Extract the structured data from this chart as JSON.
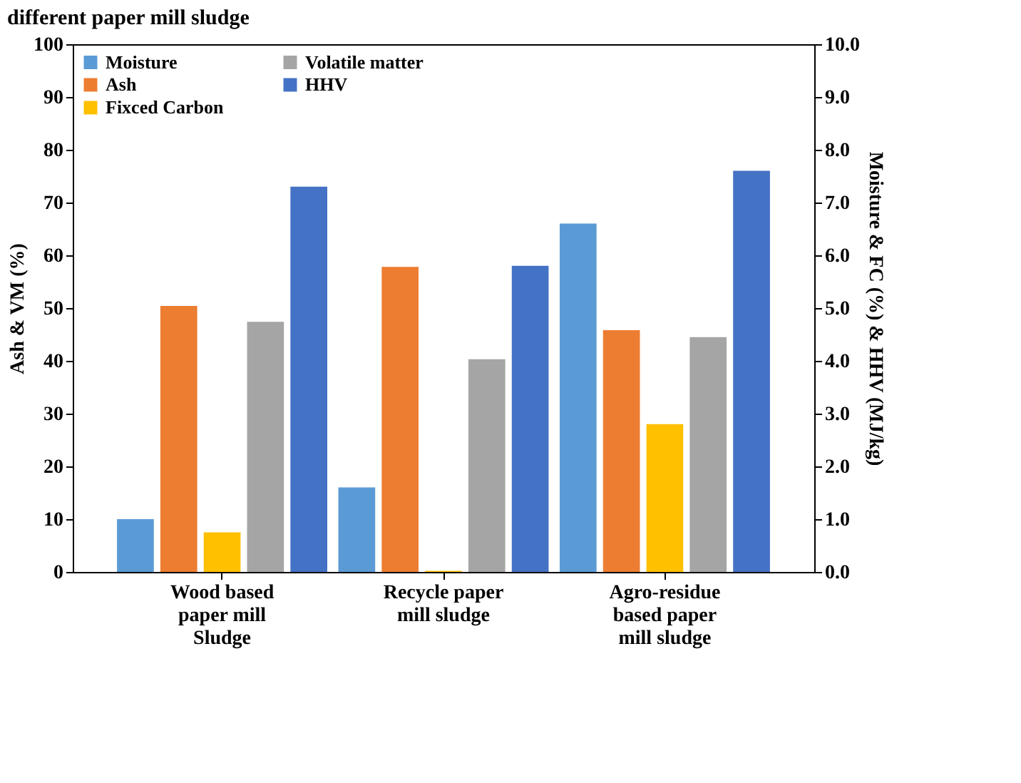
{
  "chart_data": {
    "type": "bar",
    "title": "different paper mill sludge",
    "categories": [
      "Wood based paper mill Sludge",
      "Recycle paper mill sludge",
      "Agro-residue based paper mill sludge"
    ],
    "series": [
      {
        "name": "Moisture",
        "color": "#5b9bd5",
        "axis": "y2",
        "values": [
          1.0,
          1.6,
          6.6
        ]
      },
      {
        "name": "Ash",
        "color": "#ed7d31",
        "values": [
          50.4,
          57.8,
          45.8
        ]
      },
      {
        "name": "Fixced Carbon",
        "color": "#ffc000",
        "axis": "y2",
        "values": [
          0.75,
          0.02,
          2.8
        ]
      },
      {
        "name": "Volatile matter",
        "color": "#a5a5a5",
        "values": [
          47.4,
          40.3,
          44.5
        ]
      },
      {
        "name": "HHV",
        "color": "#4472c4",
        "axis": "y2",
        "values": [
          7.3,
          5.8,
          7.6
        ]
      }
    ],
    "ylabel": "Ash & VM (%)",
    "y2label": "Moisture & FC (%) & HHV (MJ/kg)",
    "ylim": [
      0,
      100
    ],
    "yticks": [
      0,
      10,
      20,
      30,
      40,
      50,
      60,
      70,
      80,
      90,
      100
    ],
    "y2lim": [
      0,
      10
    ],
    "y2ticks": [
      {
        "value": 0,
        "label": "0.0"
      },
      {
        "value": 1,
        "label": "1.0"
      },
      {
        "value": 2,
        "label": "2.0"
      },
      {
        "value": 3,
        "label": "3.0"
      },
      {
        "value": 4,
        "label": "4.0"
      },
      {
        "value": 5,
        "label": "5.0"
      },
      {
        "value": 6,
        "label": "6.0"
      },
      {
        "value": 7,
        "label": "7.0"
      },
      {
        "value": 8,
        "label": "8.0"
      },
      {
        "value": 9,
        "label": "9.0"
      },
      {
        "value": 10,
        "label": "10.0"
      }
    ],
    "grid": false,
    "legend": "top"
  }
}
